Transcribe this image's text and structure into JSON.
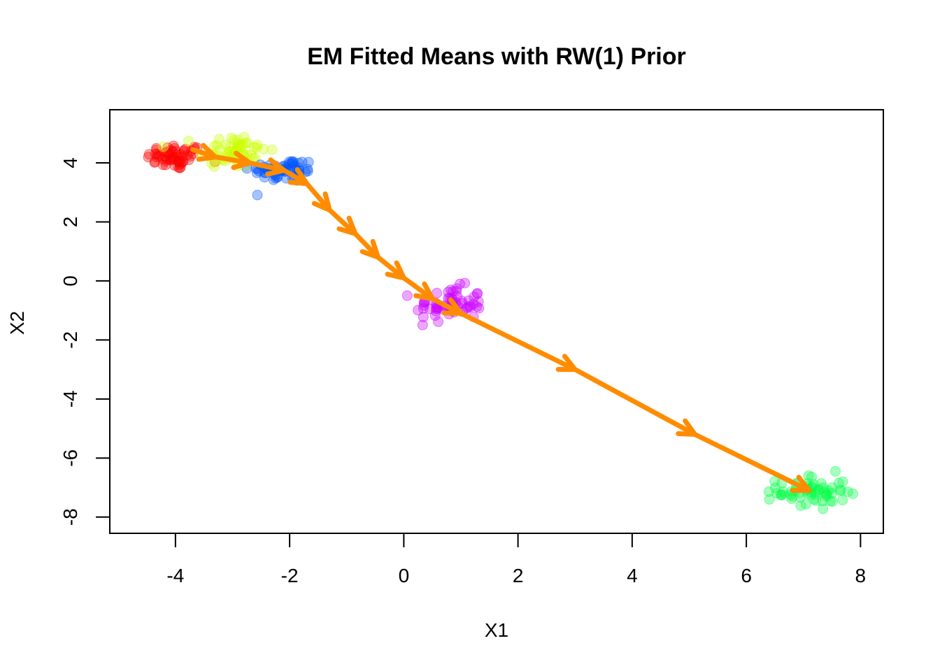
{
  "chart_data": {
    "type": "scatter",
    "title": "EM Fitted Means with RW(1) Prior",
    "xlabel": "X1",
    "ylabel": "X2",
    "xlim": [
      -5.15,
      8.4
    ],
    "ylim": [
      -8.55,
      5.8
    ],
    "x_ticks": [
      "-4",
      "-2",
      "0",
      "2",
      "4",
      "6",
      "8"
    ],
    "y_ticks": [
      "-8",
      "-6",
      "-4",
      "-2",
      "0",
      "2",
      "4"
    ],
    "grid": false,
    "legend": "none",
    "clusters": [
      {
        "color": "#FF0000",
        "center": [
          -4.0,
          4.2
        ],
        "spread": [
          0.25,
          0.22
        ],
        "n": 60
      },
      {
        "color": "#CCFF00",
        "center": [
          -3.0,
          4.4
        ],
        "spread": [
          0.3,
          0.3
        ],
        "n": 60
      },
      {
        "color": "#0055FF",
        "center": [
          -2.1,
          3.75
        ],
        "spread": [
          0.3,
          0.2
        ],
        "n": 60
      },
      {
        "color": "#CC00FF",
        "center": [
          0.8,
          -0.8
        ],
        "spread": [
          0.3,
          0.3
        ],
        "n": 60
      },
      {
        "color": "#00FF44",
        "center": [
          7.15,
          -7.15
        ],
        "spread": [
          0.3,
          0.3
        ],
        "n": 60
      }
    ],
    "fitted_means": {
      "color": "#FF8C00",
      "path": [
        [
          -3.7,
          4.45
        ],
        [
          -3.3,
          4.2
        ],
        [
          -2.7,
          4.0
        ],
        [
          -2.1,
          3.75
        ],
        [
          -1.7,
          3.3
        ],
        [
          -1.3,
          2.4
        ],
        [
          -0.85,
          1.6
        ],
        [
          -0.45,
          0.8
        ],
        [
          0.0,
          0.1
        ],
        [
          0.5,
          -0.6
        ],
        [
          1.0,
          -1.1
        ],
        [
          3.0,
          -3.0
        ],
        [
          5.1,
          -5.2
        ],
        [
          7.1,
          -7.1
        ]
      ]
    }
  }
}
